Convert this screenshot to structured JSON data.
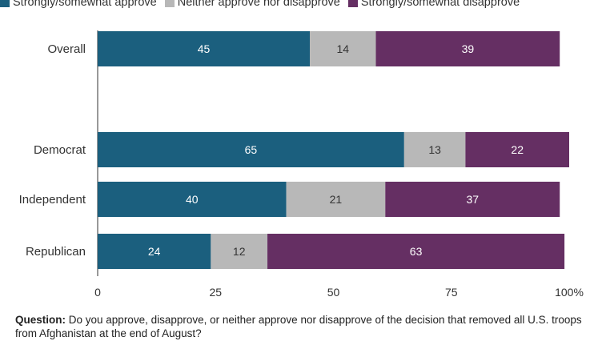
{
  "legend": [
    {
      "label": "Strongly/somewhat approve",
      "color": "#1b5f7e"
    },
    {
      "label": "Neither approve nor disapprove",
      "color": "#b8b8b8"
    },
    {
      "label": "Strongly/somewhat disapprove",
      "color": "#652f63"
    }
  ],
  "question": {
    "prefix": "Question:",
    "text": "Do you approve, disapprove, or neither approve nor disapprove of the decision that removed all U.S. troops from Afghanistan at the end of August?"
  },
  "chart_data": {
    "type": "bar",
    "orientation": "horizontal",
    "stacked": true,
    "categories": [
      "Overall",
      "Democrat",
      "Independent",
      "Republican"
    ],
    "series": [
      {
        "name": "Strongly/somewhat approve",
        "color": "#1b5f7e",
        "label_color": "#ffffff",
        "values": [
          45,
          65,
          40,
          24
        ]
      },
      {
        "name": "Neither approve nor disapprove",
        "color": "#b8b8b8",
        "label_color": "#333333",
        "values": [
          14,
          13,
          21,
          12
        ]
      },
      {
        "name": "Strongly/somewhat disapprove",
        "color": "#652f63",
        "label_color": "#ffffff",
        "values": [
          39,
          22,
          37,
          63
        ]
      }
    ],
    "xlim": [
      0,
      100
    ],
    "xticks": [
      0,
      25,
      50,
      75,
      100
    ],
    "xtick_labels": [
      "0",
      "25",
      "50",
      "75",
      "100%"
    ],
    "legend_position": "top-left",
    "grid": false
  }
}
